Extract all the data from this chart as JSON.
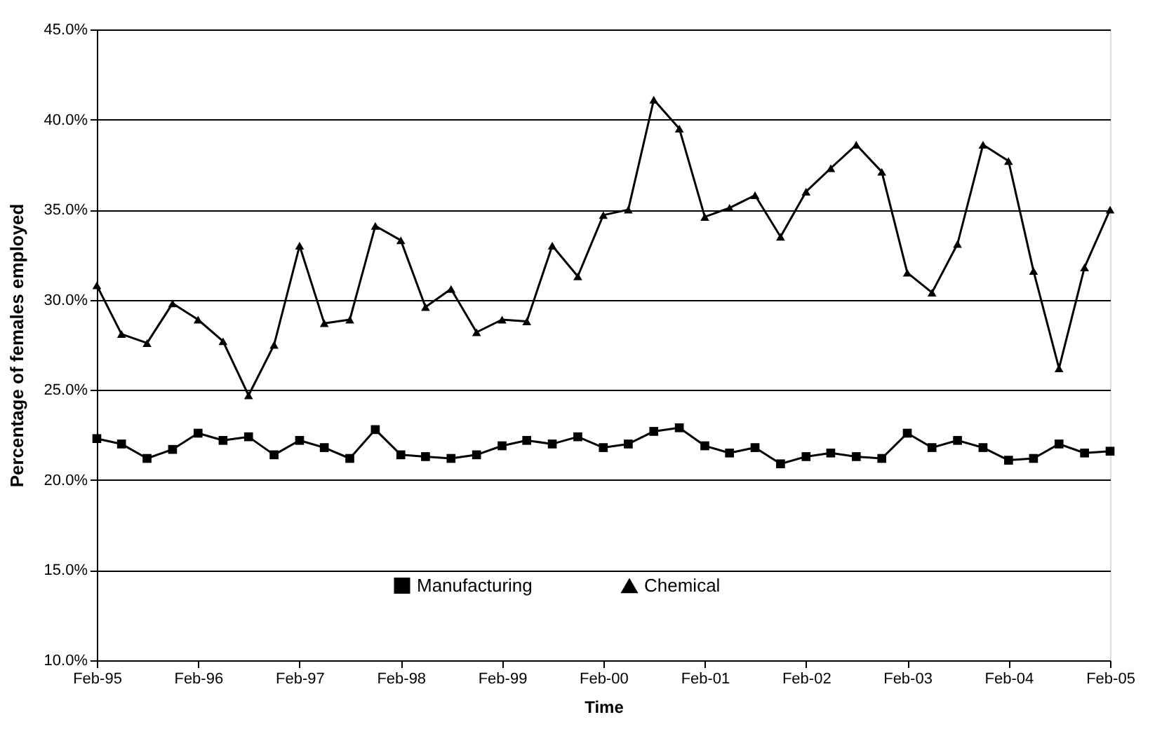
{
  "chart_data": {
    "type": "line",
    "xlabel": "Time",
    "ylabel": "Percentage of females employed",
    "x": [
      "1995-02",
      "1995-05",
      "1995-08",
      "1995-11",
      "1996-02",
      "1996-05",
      "1996-08",
      "1996-11",
      "1997-02",
      "1997-05",
      "1997-08",
      "1997-11",
      "1998-02",
      "1998-05",
      "1998-08",
      "1998-11",
      "1999-02",
      "1999-05",
      "1999-08",
      "1999-11",
      "2000-02",
      "2000-05",
      "2000-08",
      "2000-11",
      "2001-02",
      "2001-05",
      "2001-08",
      "2001-11",
      "2002-02",
      "2002-05",
      "2002-08",
      "2002-11",
      "2003-02",
      "2003-05",
      "2003-08",
      "2003-11",
      "2004-02",
      "2004-05",
      "2004-08",
      "2004-11",
      "2005-02"
    ],
    "series": [
      {
        "name": "Manufacturing",
        "color": "#000000",
        "marker": "square",
        "values": [
          22.3,
          22.0,
          21.2,
          21.7,
          22.6,
          22.2,
          22.4,
          21.4,
          22.2,
          21.8,
          21.2,
          22.8,
          21.4,
          21.3,
          21.2,
          21.4,
          21.9,
          22.2,
          22.0,
          22.4,
          21.8,
          22.0,
          22.7,
          22.9,
          21.9,
          21.5,
          21.8,
          20.9,
          21.3,
          21.5,
          21.3,
          21.2,
          22.6,
          21.8,
          22.2,
          21.8,
          21.1,
          21.2,
          22.0,
          21.5,
          21.6
        ]
      },
      {
        "name": "Chemical",
        "color": "#000000",
        "marker": "triangle",
        "values": [
          30.8,
          28.1,
          27.6,
          29.8,
          28.9,
          27.7,
          24.7,
          27.5,
          33.0,
          28.7,
          28.9,
          34.1,
          33.3,
          29.6,
          30.6,
          28.2,
          28.9,
          28.8,
          33.0,
          31.3,
          34.7,
          35.0,
          41.1,
          39.5,
          34.6,
          35.1,
          35.8,
          33.5,
          36.0,
          37.3,
          38.6,
          37.1,
          31.5,
          30.4,
          33.1,
          38.6,
          37.7,
          31.6,
          26.2,
          31.8,
          35.0
        ]
      }
    ],
    "xlim": [
      "1995-02",
      "2005-02"
    ],
    "xticks": [
      {
        "value": "1995-02",
        "label": "Feb-95"
      },
      {
        "value": "1996-02",
        "label": "Feb-96"
      },
      {
        "value": "1997-02",
        "label": "Feb-97"
      },
      {
        "value": "1998-02",
        "label": "Feb-98"
      },
      {
        "value": "1999-02",
        "label": "Feb-99"
      },
      {
        "value": "2000-02",
        "label": "Feb-00"
      },
      {
        "value": "2001-02",
        "label": "Feb-01"
      },
      {
        "value": "2002-02",
        "label": "Feb-02"
      },
      {
        "value": "2003-02",
        "label": "Feb-03"
      },
      {
        "value": "2004-02",
        "label": "Feb-04"
      },
      {
        "value": "2005-02",
        "label": "Feb-05"
      }
    ],
    "ylim": [
      10,
      45
    ],
    "yticks": [
      {
        "value": 10,
        "label": "10.0%"
      },
      {
        "value": 15,
        "label": "15.0%"
      },
      {
        "value": 20,
        "label": "20.0%"
      },
      {
        "value": 25,
        "label": "25.0%"
      },
      {
        "value": 30,
        "label": "30.0%"
      },
      {
        "value": 35,
        "label": "35.0%"
      },
      {
        "value": 40,
        "label": "40.0%"
      },
      {
        "value": 45,
        "label": "45.0%"
      }
    ],
    "grid": "y",
    "legend": "bottom",
    "line_style": "solid"
  }
}
